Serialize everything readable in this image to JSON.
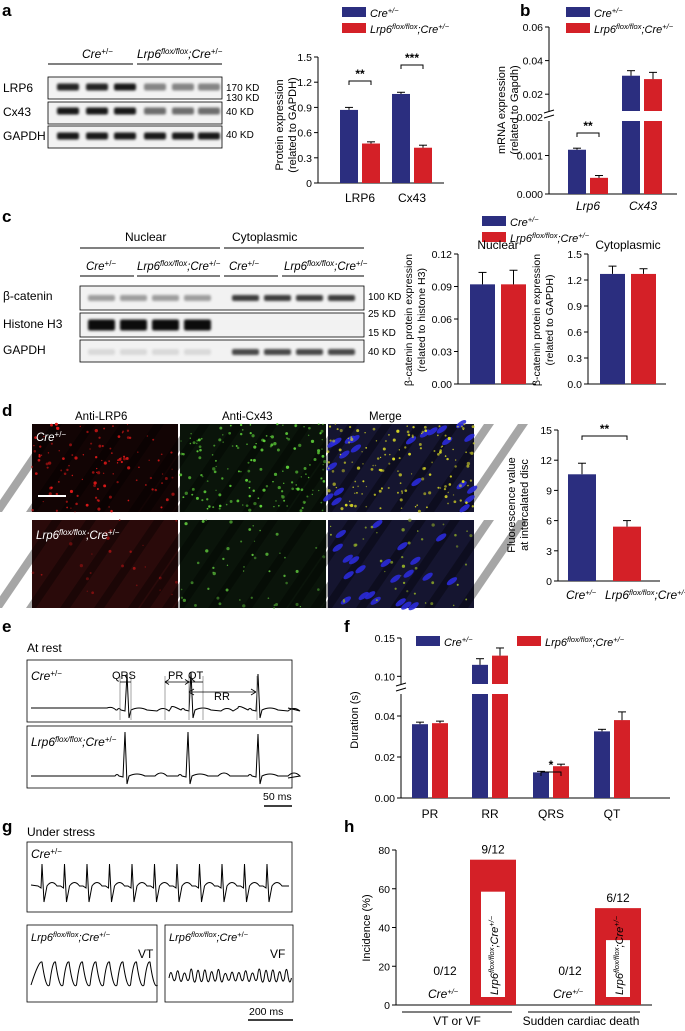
{
  "panels": {
    "a": "a",
    "b": "b",
    "c": "c",
    "d": "d",
    "e": "e",
    "f": "f",
    "g": "g",
    "h": "h"
  },
  "legend": {
    "cre_base": "Cre",
    "cre_sup": "+/−",
    "lrp_base": "Lrp6",
    "lrp_sup": "flox/flox",
    "lrp_mid": ";Cre",
    "lrp_sup2": "+/−"
  },
  "colors": {
    "cre": "#2b2e7f",
    "lrp": "#d42027"
  },
  "blot_a": {
    "group1": "Cre+/−",
    "group2": "Lrp6flox/flox;Cre+/−",
    "rows": [
      "LRP6",
      "Cx43",
      "GAPDH"
    ],
    "kd": [
      "170 KD",
      "130 KD",
      "40 KD",
      "40 KD"
    ]
  },
  "blot_c": {
    "col1": "Nuclear",
    "col2": "Cytoplasmic",
    "rows": [
      "β-catenin",
      "Histone H3",
      "GAPDH"
    ],
    "kd": [
      "100 KD",
      "25 KD",
      "15 KD",
      "40 KD"
    ]
  },
  "micro_d": {
    "cols": [
      "Anti-LRP6",
      "Anti-Cx43",
      "Merge"
    ]
  },
  "ecg": {
    "e_title": "At rest",
    "g_title": "Under stress",
    "labels": [
      "QRS",
      "PR",
      "QT",
      "RR"
    ],
    "scale_e": "50 ms",
    "scale_g": "200 ms",
    "vt": "VT",
    "vf": "VF"
  },
  "chart_data": [
    {
      "panel": "a",
      "type": "bar",
      "categories": [
        "LRP6",
        "Cx43"
      ],
      "series": [
        {
          "name": "Cre+/−",
          "values": [
            0.87,
            1.06
          ],
          "errors": [
            0.03,
            0.02
          ]
        },
        {
          "name": "Lrp6flox/flox;Cre+/−",
          "values": [
            0.47,
            0.42
          ],
          "errors": [
            0.02,
            0.03
          ]
        }
      ],
      "ylabel": "Protein expression (related to GAPDH)",
      "ylim": [
        0,
        1.5
      ],
      "yticks": [
        "0",
        "0.3",
        "0.6",
        "0.9",
        "1.2",
        "1.5"
      ],
      "significance": [
        "**",
        "***"
      ]
    },
    {
      "panel": "b",
      "type": "bar",
      "categories": [
        "Lrp6",
        "Cx43"
      ],
      "series": [
        {
          "name": "Cre+/−",
          "values": [
            0.00115,
            0.031
          ],
          "errors": [
            4e-05,
            0.003
          ]
        },
        {
          "name": "Lrp6flox/flox;Cre+/−",
          "values": [
            0.00042,
            0.029
          ],
          "errors": [
            6e-05,
            0.004
          ]
        }
      ],
      "ylabel": "mRNA expression (related to Gapdh)",
      "broken_axis": true,
      "yticks_lower": [
        "0.000",
        "0.001",
        "0.002"
      ],
      "yticks_upper": [
        "0.02",
        "0.04",
        "0.06"
      ],
      "significance": [
        "**"
      ]
    },
    {
      "panel": "c-nuclear",
      "type": "bar",
      "title": "Nuclear",
      "categories": [
        ""
      ],
      "series": [
        {
          "name": "Cre+/−",
          "values": [
            0.092
          ],
          "errors": [
            0.011
          ]
        },
        {
          "name": "Lrp6flox/flox;Cre+/−",
          "values": [
            0.092
          ],
          "errors": [
            0.013
          ]
        }
      ],
      "ylabel": "β-catenin protein expression (related to histone H3)",
      "ylim": [
        0,
        0.12
      ],
      "yticks": [
        "0.00",
        "0.03",
        "0.06",
        "0.09",
        "0.12"
      ]
    },
    {
      "panel": "c-cytoplasmic",
      "type": "bar",
      "title": "Cytoplasmic",
      "categories": [
        ""
      ],
      "series": [
        {
          "name": "Cre+/−",
          "values": [
            1.27
          ],
          "errors": [
            0.09
          ]
        },
        {
          "name": "Lrp6flox/flox;Cre+/−",
          "values": [
            1.27
          ],
          "errors": [
            0.06
          ]
        }
      ],
      "ylabel": "β-catenin protein expression (related to GAPDH)",
      "ylim": [
        0,
        1.5
      ],
      "yticks": [
        "0.0",
        "0.3",
        "0.6",
        "0.9",
        "1.2",
        "1.5"
      ]
    },
    {
      "panel": "d",
      "type": "bar",
      "categories": [
        "Cre+/−",
        "Lrp6flox/flox;Cre+/−"
      ],
      "series": [
        {
          "name": "",
          "values": [
            10.6,
            5.4
          ],
          "errors": [
            1.1,
            0.6
          ]
        }
      ],
      "ylabel": "Fluorescence value at intercalated disc",
      "ylim": [
        0,
        15
      ],
      "yticks": [
        "0",
        "3",
        "6",
        "9",
        "12",
        "15"
      ],
      "significance": [
        "**"
      ]
    },
    {
      "panel": "f",
      "type": "bar",
      "categories": [
        "PR",
        "RR",
        "QRS",
        "QT"
      ],
      "series": [
        {
          "name": "Cre+/−",
          "values": [
            0.036,
            0.115,
            0.0125,
            0.0325
          ],
          "errors": [
            0.001,
            0.008,
            0.0005,
            0.001
          ]
        },
        {
          "name": "Lrp6flox/flox;Cre+/−",
          "values": [
            0.0365,
            0.127,
            0.0155,
            0.038
          ],
          "errors": [
            0.001,
            0.01,
            0.001,
            0.004
          ]
        }
      ],
      "ylabel": "Duration (s)",
      "broken_axis": true,
      "yticks_lower": [
        "0.00",
        "0.02",
        "0.04"
      ],
      "yticks_upper": [
        "0.10",
        "0.15"
      ],
      "significance": [
        "*"
      ]
    },
    {
      "panel": "h",
      "type": "bar",
      "categories": [
        "VT or VF",
        "Sudden cardiac death"
      ],
      "series": [
        {
          "name": "Cre+/−",
          "values": [
            0,
            0
          ],
          "labels": [
            "0/12",
            "0/12"
          ]
        },
        {
          "name": "Lrp6flox/flox;Cre+/−",
          "values": [
            75,
            50
          ],
          "labels": [
            "9/12",
            "6/12"
          ]
        }
      ],
      "ylabel": "Incidence (%)",
      "ylim": [
        0,
        80
      ],
      "yticks": [
        "0",
        "20",
        "40",
        "60",
        "80"
      ]
    }
  ]
}
